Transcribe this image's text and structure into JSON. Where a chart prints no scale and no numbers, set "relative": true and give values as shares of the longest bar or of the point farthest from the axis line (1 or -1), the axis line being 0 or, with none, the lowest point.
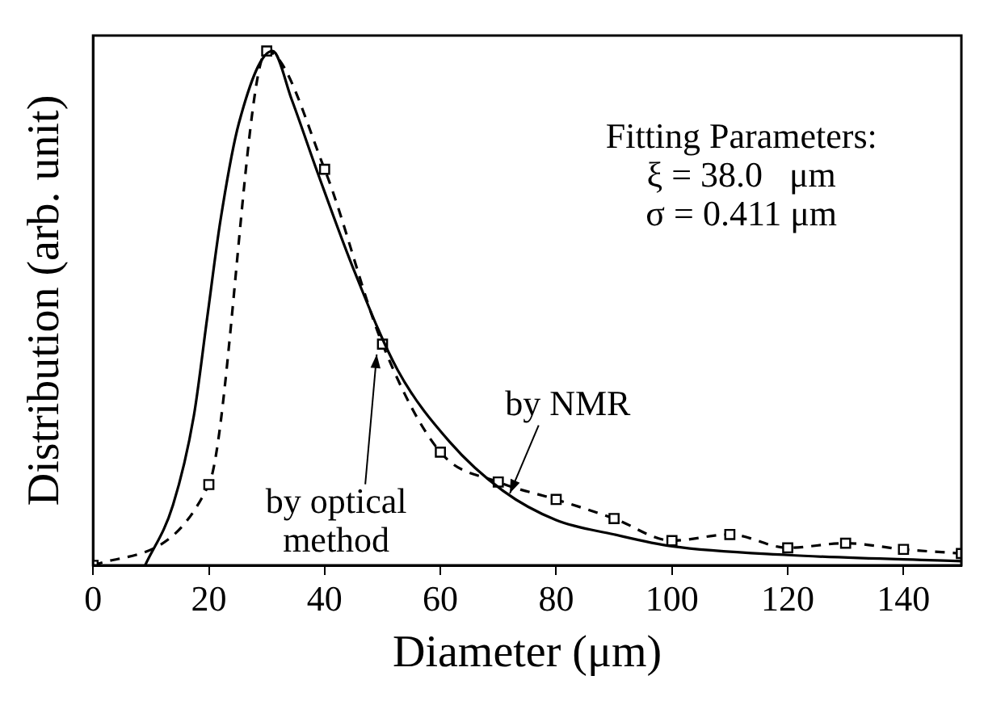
{
  "chart_data": {
    "type": "line",
    "xlabel": "Diameter (μm)",
    "ylabel": "Distribution (arb. unit)",
    "relative": true,
    "xlim": [
      0,
      150
    ],
    "xticks": [
      0,
      20,
      40,
      60,
      80,
      100,
      120,
      140
    ],
    "grid": false,
    "legend": false,
    "annotations": [
      "Fitting Parameters:",
      "ξ = 38.0   μm",
      "σ = 0.411 μm"
    ],
    "series": [
      {
        "name": "by NMR",
        "color": "#000000",
        "marker": "none",
        "line_style": "solid",
        "x": [
          9,
          13.8,
          17.4,
          19.7,
          22,
          25.2,
          31,
          34.3,
          38.9,
          45.2,
          52.6,
          61.6,
          70.8,
          80,
          90,
          100,
          120,
          150
        ],
        "values": [
          0,
          0.117,
          0.29,
          0.48,
          0.67,
          0.86,
          1,
          0.906,
          0.76,
          0.57,
          0.38,
          0.24,
          0.145,
          0.088,
          0.06,
          0.037,
          0.02,
          0.008
        ]
      },
      {
        "name": "by optical method",
        "color": "#000000",
        "marker": "square",
        "line_style": "dashed",
        "x": [
          0,
          20,
          30,
          40,
          50,
          60,
          70,
          80,
          90,
          100,
          110,
          120,
          130,
          140,
          150
        ],
        "values": [
          0,
          0.157,
          1,
          0.77,
          0.43,
          0.22,
          0.162,
          0.128,
          0.091,
          0.048,
          0.06,
          0.034,
          0.043,
          0.031,
          0.023
        ]
      }
    ]
  }
}
